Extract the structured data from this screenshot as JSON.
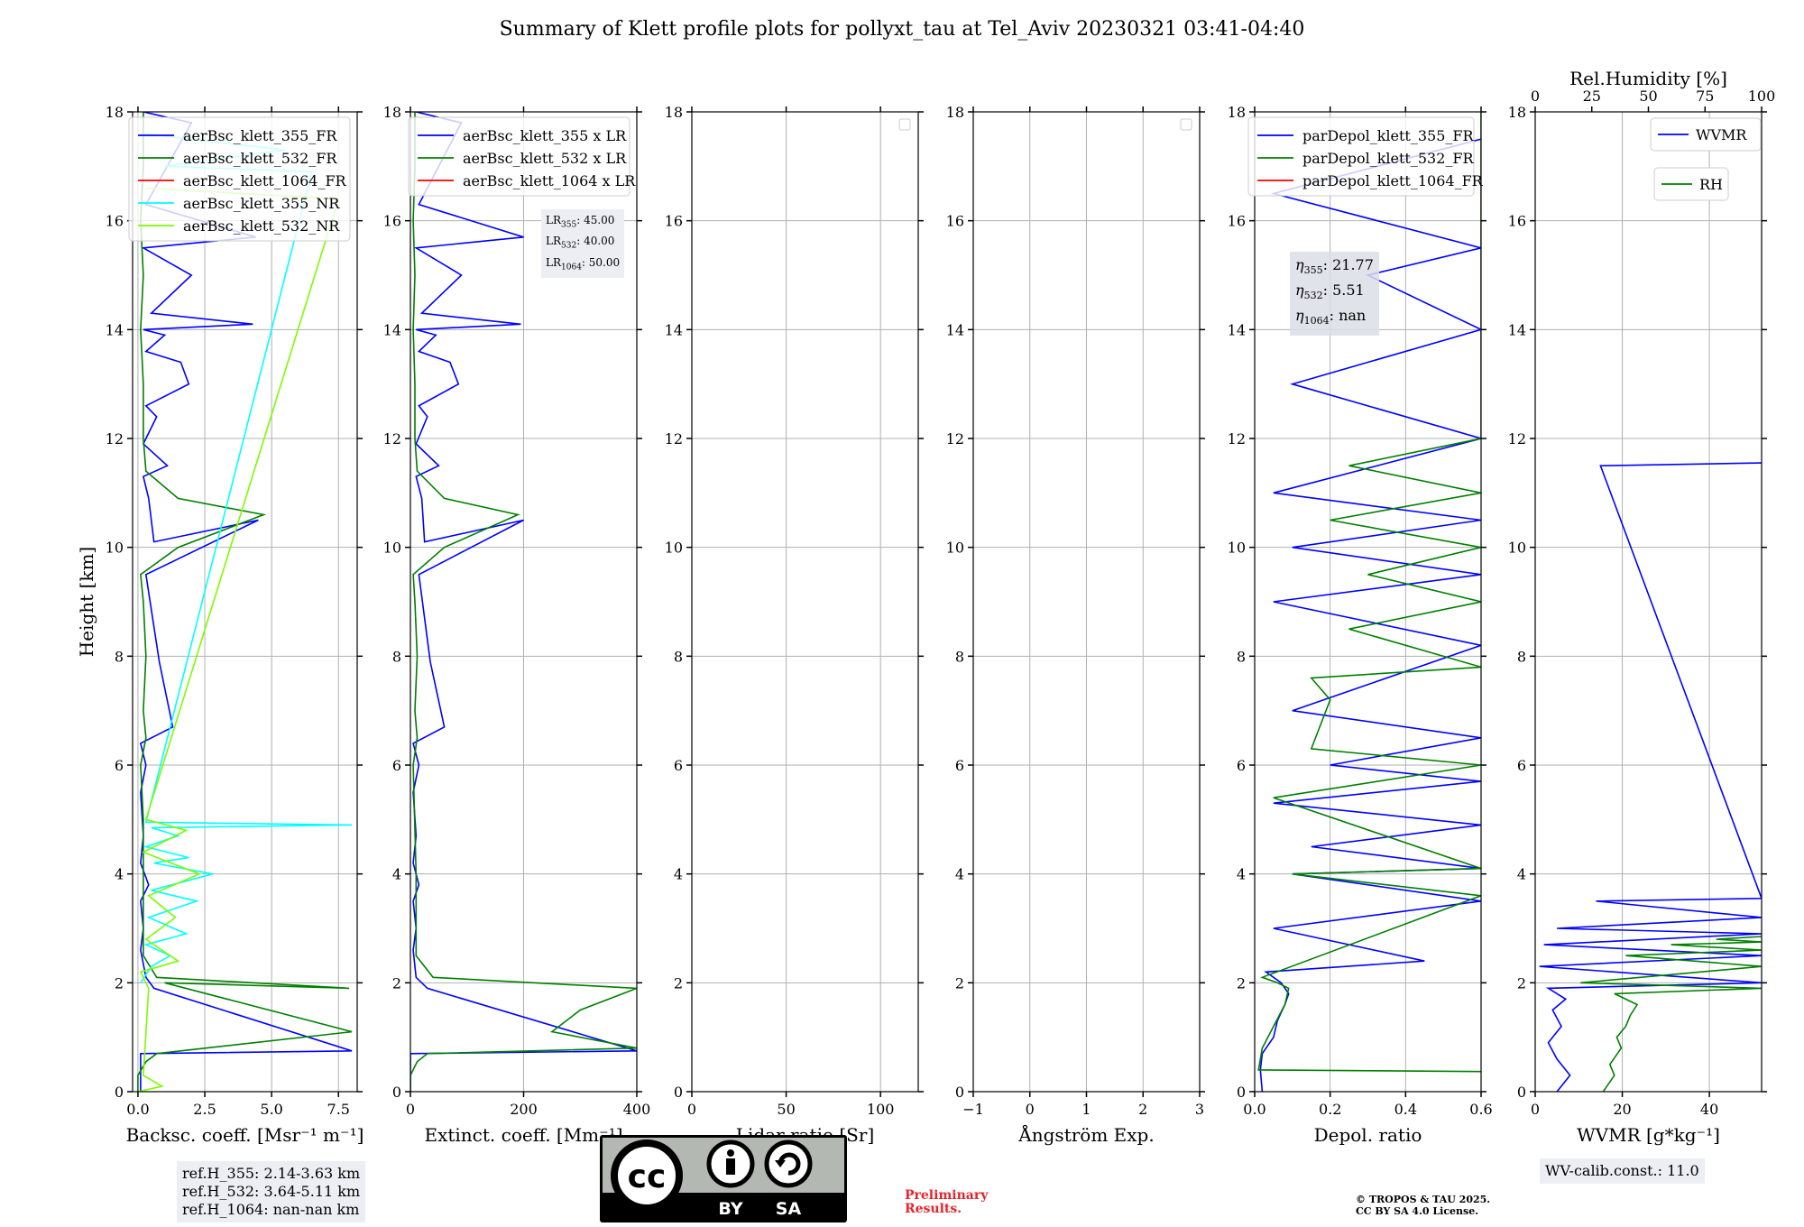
{
  "title": "Summary of Klett profile plots for pollyxt_tau at Tel_Aviv 20230321 03:41-04:40",
  "ylabel": "Height [km]",
  "ref_heights": [
    "ref.H_355: 2.14-3.63 km",
    "ref.H_532: 3.64-5.11 km",
    "ref.H_1064: nan-nan km"
  ],
  "lidar_ratios": {
    "lr355": "45.00",
    "lr532": "40.00",
    "lr1064": "50.00"
  },
  "eta": {
    "e355": "21.77",
    "e532": "5.51",
    "e1064": "nan"
  },
  "wv_calib": "WV-calib.const.: 11.0",
  "preliminary": [
    "Preliminary",
    "Results."
  ],
  "copyright": [
    "© TROPOS & TAU 2025.",
    "CC BY SA 4.0 License."
  ],
  "cc_badge": {
    "label_by": "BY",
    "label_sa": "SA"
  },
  "colors": {
    "c355": "#0000ff",
    "c532": "#008000",
    "c1064": "#ff0000",
    "c355nr": "#00ffff",
    "c532nr": "#7cfc00",
    "grid": "#b0b0b0"
  },
  "chart_data": [
    {
      "type": "line",
      "xlabel": "Backsc. coeff. [Msr$^{-1}$ m$^{-1}$]",
      "xlabel_display": "Backsc. coeff. [Msr⁻¹ m⁻¹]",
      "ylabel": "Height [km]",
      "xlim": [
        -0.2,
        8.2
      ],
      "ylim": [
        0,
        18
      ],
      "xticks": [
        0.0,
        2.5,
        5.0,
        7.5
      ],
      "xtick_labels": [
        "0.0",
        "2.5",
        "5.0",
        "7.5"
      ],
      "yticks": [
        0,
        2,
        4,
        6,
        8,
        10,
        12,
        14,
        16,
        18
      ],
      "grid": true,
      "legend": "upper-right",
      "series": [
        {
          "name": "aerBsc_klett_355_FR",
          "color": "#0000ff",
          "x": [
            0.1,
            0.1,
            8.0,
            0.6,
            0.3,
            0.1,
            0.2,
            0.1,
            0.4,
            0.1,
            0.2,
            0.1,
            0.3,
            0.1,
            1.3,
            0.8,
            0.3,
            4.5,
            0.6,
            0.4,
            0.2,
            1.1,
            0.2,
            0.7,
            0.3,
            1.9,
            1.6,
            0.3,
            1.0,
            0.2,
            4.3,
            0.5,
            2.0,
            0.2,
            4.4,
            0.3,
            2.0,
            0.2
          ],
          "y": [
            0.0,
            0.7,
            0.75,
            1.9,
            2.1,
            2.6,
            3.0,
            3.5,
            3.8,
            4.2,
            4.7,
            5.5,
            6.0,
            6.4,
            6.7,
            7.9,
            9.5,
            10.5,
            10.1,
            10.9,
            11.3,
            11.5,
            11.9,
            12.4,
            12.6,
            13.0,
            13.4,
            13.6,
            13.9,
            14.0,
            14.1,
            14.3,
            15.0,
            15.5,
            15.7,
            16.3,
            17.8,
            18.0
          ]
        },
        {
          "name": "aerBsc_klett_532_FR",
          "color": "#008000",
          "x": [
            0.0,
            0.0,
            0.3,
            0.7,
            8.0,
            1.0,
            7.9,
            0.7,
            0.2,
            0.2,
            0.2,
            0.1,
            0.3,
            0.2,
            0.3,
            0.2,
            0.1,
            1.5,
            4.7,
            1.5,
            0.3,
            0.2,
            0.2,
            0.1,
            0.2,
            0.1,
            0.2,
            0.2
          ],
          "y": [
            0.0,
            0.3,
            0.55,
            0.7,
            1.1,
            2.0,
            1.9,
            2.1,
            2.5,
            4.0,
            5.0,
            6.0,
            6.5,
            7.0,
            8.0,
            9.0,
            9.5,
            10.0,
            10.6,
            10.9,
            11.4,
            12.0,
            13.0,
            14.0,
            15.0,
            16.0,
            17.0,
            18.0
          ]
        },
        {
          "name": "aerBsc_klett_1064_FR",
          "color": "#ff0000",
          "x": [],
          "y": []
        },
        {
          "name": "aerBsc_klett_355_NR",
          "color": "#00ffff",
          "x": [
            0.1,
            0.5,
            1.2,
            0.3,
            1.8,
            0.4,
            2.2,
            0.5,
            2.8,
            0.6,
            1.9,
            0.3,
            1.5,
            0.5,
            8.0,
            0.3,
            6.5,
            1.0,
            5.5,
            0.2
          ],
          "y": [
            2.0,
            2.3,
            2.5,
            2.7,
            2.9,
            3.2,
            3.5,
            3.7,
            4.0,
            4.2,
            4.3,
            4.5,
            4.7,
            4.85,
            4.9,
            4.95,
            16.9,
            17.0,
            17.3,
            17.6
          ]
        },
        {
          "name": "aerBsc_klett_532_NR",
          "color": "#7cfc00",
          "x": [
            0.0,
            0.9,
            0.2,
            0.4,
            0.1,
            1.5,
            0.3,
            1.4,
            0.4,
            2.3,
            0.2,
            1.8,
            0.3,
            7.5,
            0.3
          ],
          "y": [
            0.0,
            0.1,
            0.3,
            1.9,
            2.2,
            2.4,
            2.8,
            3.2,
            3.6,
            4.0,
            4.4,
            4.8,
            5.0,
            16.4,
            16.6
          ]
        }
      ]
    },
    {
      "type": "line",
      "xlabel": "Extinct. coeff. [Mm$^{-1}$]",
      "xlabel_display": "Extinct. coeff. [Mm⁻¹]",
      "xlim": [
        0,
        400
      ],
      "ylim": [
        0,
        18
      ],
      "xticks": [
        0,
        200,
        400
      ],
      "xtick_labels": [
        "0",
        "200",
        "400"
      ],
      "yticks": [
        0,
        2,
        4,
        6,
        8,
        10,
        12,
        14,
        16,
        18
      ],
      "grid": true,
      "legend": "upper-right",
      "series": [
        {
          "name": "aerBsc_klett_355 x LR",
          "color": "#0000ff",
          "x": [
            0,
            0,
            400,
            30,
            10,
            5,
            10,
            5,
            15,
            5,
            10,
            5,
            15,
            5,
            60,
            35,
            15,
            200,
            25,
            20,
            10,
            50,
            10,
            30,
            15,
            85,
            70,
            15,
            45,
            10,
            195,
            20,
            90,
            10,
            200,
            15,
            90,
            10
          ],
          "y": [
            0.0,
            0.7,
            0.75,
            1.9,
            2.1,
            2.6,
            3.0,
            3.5,
            3.8,
            4.2,
            4.7,
            5.5,
            6.0,
            6.4,
            6.7,
            7.9,
            9.5,
            10.5,
            10.1,
            10.9,
            11.3,
            11.5,
            11.9,
            12.4,
            12.6,
            13.0,
            13.4,
            13.6,
            13.9,
            14.0,
            14.1,
            14.3,
            15.0,
            15.5,
            15.7,
            16.3,
            17.8,
            18.0
          ]
        },
        {
          "name": "aerBsc_klett_532 x LR",
          "color": "#008000",
          "x": [
            0,
            0,
            12,
            30,
            400,
            250,
            300,
            400,
            40,
            10,
            10,
            5,
            12,
            8,
            12,
            8,
            5,
            60,
            190,
            60,
            12,
            8,
            8,
            5,
            8,
            5,
            8,
            8
          ],
          "y": [
            0.0,
            0.3,
            0.55,
            0.7,
            0.8,
            1.1,
            1.5,
            1.9,
            2.1,
            2.5,
            4.0,
            6.0,
            6.5,
            7.0,
            8.0,
            9.0,
            9.5,
            10.0,
            10.6,
            10.9,
            11.4,
            12.0,
            13.0,
            14.0,
            15.0,
            16.0,
            17.0,
            18.0
          ]
        },
        {
          "name": "aerBsc_klett_1064 x LR",
          "color": "#ff0000",
          "x": [],
          "y": []
        }
      ]
    },
    {
      "type": "line",
      "xlabel": "Lidar ratio [Sr]",
      "xlim": [
        0,
        120
      ],
      "ylim": [
        0,
        18
      ],
      "xticks": [
        0,
        50,
        100
      ],
      "xtick_labels": [
        "0",
        "50",
        "100"
      ],
      "yticks": [
        0,
        2,
        4,
        6,
        8,
        10,
        12,
        14,
        16,
        18
      ],
      "grid": true,
      "legend": "upper-right",
      "series": []
    },
    {
      "type": "line",
      "xlabel": "Ångström Exp.",
      "xlim": [
        -1,
        3
      ],
      "ylim": [
        0,
        18
      ],
      "xticks": [
        -1,
        0,
        1,
        2,
        3
      ],
      "xtick_labels": [
        "−1",
        "0",
        "1",
        "2",
        "3"
      ],
      "yticks": [
        0,
        2,
        4,
        6,
        8,
        10,
        12,
        14,
        16,
        18
      ],
      "grid": true,
      "legend": "upper-right",
      "series": []
    },
    {
      "type": "line",
      "xlabel": "Depol. ratio",
      "xlim": [
        0,
        0.6
      ],
      "ylim": [
        0,
        18
      ],
      "xticks": [
        0.0,
        0.2,
        0.4,
        0.6
      ],
      "xtick_labels": [
        "0.0",
        "0.2",
        "0.4",
        "0.6"
      ],
      "yticks": [
        0,
        2,
        4,
        6,
        8,
        10,
        12,
        14,
        16,
        18
      ],
      "grid": true,
      "legend": "upper-right",
      "series": [
        {
          "name": "parDepol_klett_355_FR",
          "color": "#0000ff",
          "x": [
            0.02,
            0.015,
            0.02,
            0.05,
            0.06,
            0.08,
            0.09,
            0.07,
            0.03,
            0.45,
            0.05,
            0.6,
            0.1,
            0.6,
            0.15,
            0.6,
            0.05,
            0.6,
            0.2,
            0.6,
            0.1,
            0.6,
            0.05,
            0.6,
            0.1,
            0.6,
            0.05,
            0.6,
            0.1,
            0.6,
            0.3,
            0.6,
            0.05,
            0.6
          ],
          "y": [
            0.0,
            0.4,
            0.7,
            1.0,
            1.3,
            1.6,
            1.8,
            2.0,
            2.2,
            2.4,
            3.0,
            3.5,
            4.0,
            4.1,
            4.5,
            4.9,
            5.3,
            5.7,
            6.0,
            6.5,
            7.0,
            8.2,
            9.0,
            9.5,
            10.0,
            10.5,
            11.0,
            12.0,
            13.0,
            14.0,
            15.0,
            15.5,
            16.5,
            17.5
          ]
        },
        {
          "name": "parDepol_klett_532_FR",
          "color": "#008000",
          "x": [
            0.6,
            0.01,
            0.02,
            0.05,
            0.08,
            0.09,
            0.06,
            0.02,
            0.6,
            0.1,
            0.6,
            0.05,
            0.6,
            0.15,
            0.2,
            0.15,
            0.6,
            0.25,
            0.6,
            0.3,
            0.6,
            0.2,
            0.6,
            0.25,
            0.6,
            0.6,
            0.6,
            0.6
          ],
          "y": [
            0.37,
            0.4,
            0.8,
            1.2,
            1.6,
            1.9,
            2.0,
            2.1,
            3.6,
            4.0,
            4.1,
            5.4,
            6.0,
            6.3,
            7.2,
            7.6,
            7.8,
            8.5,
            9.0,
            9.5,
            10.0,
            10.5,
            11.0,
            11.5,
            12.0,
            14.0,
            16.0,
            18.0
          ]
        },
        {
          "name": "parDepol_klett_1064_FR",
          "color": "#ff0000",
          "x": [],
          "y": []
        }
      ]
    },
    {
      "type": "line",
      "xlabel": "WVMR [$g*kg^{-1}$]",
      "xlabel_display": "WVMR [g*kg⁻¹]",
      "x2label": "Rel.Humidity [%]",
      "xlim": [
        0,
        52
      ],
      "x2lim": [
        0,
        100
      ],
      "ylim": [
        0,
        18
      ],
      "xticks": [
        0,
        20,
        40
      ],
      "xtick_labels": [
        "0",
        "20",
        "40"
      ],
      "x2ticks": [
        0,
        25,
        50,
        75,
        100
      ],
      "x2tick_labels": [
        "0",
        "25",
        "50",
        "75",
        "100"
      ],
      "yticks": [
        0,
        2,
        4,
        6,
        8,
        10,
        12,
        14,
        16,
        18
      ],
      "grid": true,
      "legend": "upper-right",
      "series": [
        {
          "name": "WVMR",
          "color": "#0000ff",
          "x": [
            5,
            8,
            5,
            3,
            6,
            4,
            7,
            3,
            52,
            1,
            52,
            2,
            52,
            5,
            52,
            14,
            52,
            15,
            52
          ],
          "y": [
            0.0,
            0.3,
            0.6,
            0.9,
            1.2,
            1.5,
            1.7,
            1.9,
            2.0,
            2.3,
            2.5,
            2.7,
            2.9,
            3.0,
            3.2,
            3.5,
            3.55,
            11.5,
            11.55
          ]
        },
        {
          "name": "RH",
          "color": "#008000",
          "x": [
            30,
            35,
            33,
            38,
            36,
            40,
            42,
            45,
            35,
            100,
            20,
            100,
            40,
            100,
            60,
            100,
            80,
            100
          ],
          "y": [
            0.0,
            0.3,
            0.5,
            0.8,
            1.0,
            1.2,
            1.4,
            1.6,
            1.8,
            1.9,
            2.0,
            2.3,
            2.5,
            2.6,
            2.7,
            2.75,
            2.8,
            2.85
          ]
        }
      ]
    }
  ]
}
